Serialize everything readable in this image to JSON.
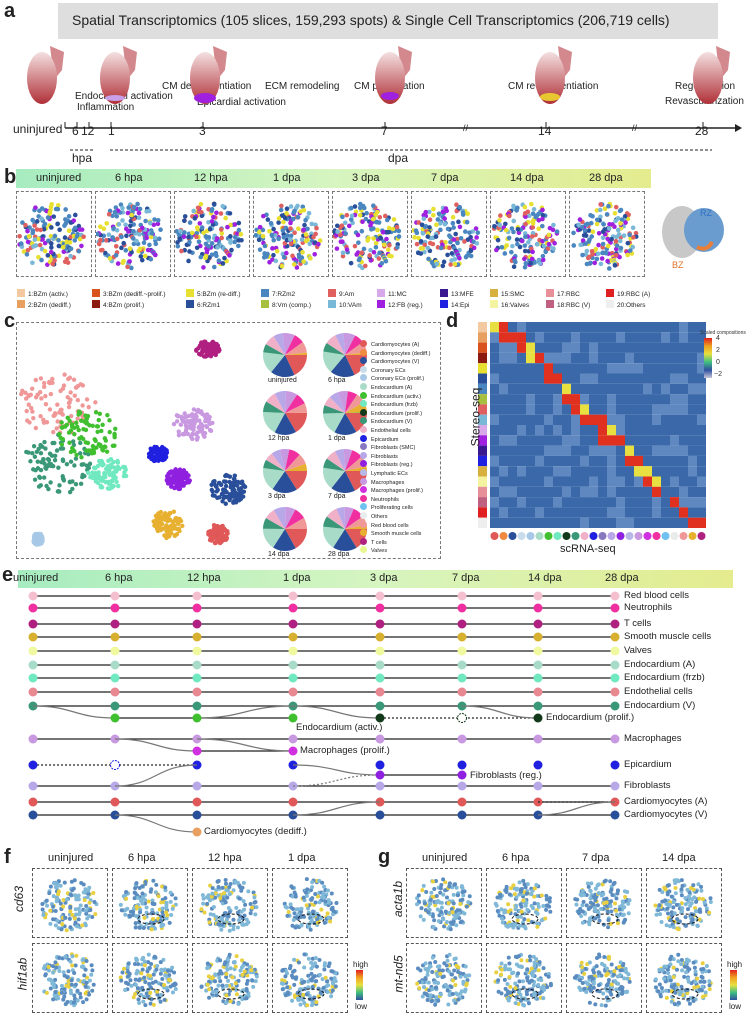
{
  "panel_labels": {
    "a": "a",
    "b": "b",
    "c": "c",
    "d": "d",
    "e": "e",
    "f": "f",
    "g": "g"
  },
  "a": {
    "header": "Spatial Transcriptomics  (105 slices, 159,293 spots)  &  Single Cell Transcriptomics (206,719 cells)",
    "events": [
      "Endocardial activation",
      "Inflammation",
      "CM dedifferentiation",
      "Epicardial activation",
      "ECM remodeling",
      "CM proliferation",
      "CM re-differentiation",
      "Regeneration",
      "Revascularization"
    ],
    "ticks": [
      "uninjured",
      "6",
      "12",
      "1",
      "3",
      "7",
      "14",
      "28"
    ],
    "units": [
      "hpa",
      "dpa"
    ]
  },
  "b": {
    "timepoints": [
      "uninjured",
      "6 hpa",
      "12 hpa",
      "1 dpa",
      "3 dpa",
      "7 dpa",
      "14 dpa",
      "28 dpa"
    ],
    "zones": [
      "RZ",
      "BZ"
    ],
    "legend": [
      {
        "label": "1:BZm (activ.)",
        "color": "#f2c9a0"
      },
      {
        "label": "2:BZm (dediff.)",
        "color": "#e8a060"
      },
      {
        "label": "3:BZm (dediff.~prolif.)",
        "color": "#d9531e"
      },
      {
        "label": "4:BZm (prolif.)",
        "color": "#8b1a10"
      },
      {
        "label": "5:BZm (re-diff.)",
        "color": "#e8e030"
      },
      {
        "label": "6:RZm1",
        "color": "#2a4f9a"
      },
      {
        "label": "7:RZm2",
        "color": "#4a86c0"
      },
      {
        "label": "8:Vm (comp.)",
        "color": "#a8c040"
      },
      {
        "label": "9:Am",
        "color": "#e06060"
      },
      {
        "label": "10:VAm",
        "color": "#7ab8d8"
      },
      {
        "label": "11:MC",
        "color": "#d8a8e8"
      },
      {
        "label": "12:FB (reg.)",
        "color": "#a020e0"
      },
      {
        "label": "13:MFE",
        "color": "#3a1890"
      },
      {
        "label": "14:Epi",
        "color": "#2020e0"
      },
      {
        "label": "15:SMC",
        "color": "#d8b040"
      },
      {
        "label": "16:Valves",
        "color": "#f4f4a0"
      },
      {
        "label": "17:RBC",
        "color": "#e8909a"
      },
      {
        "label": "18:RBC (V)",
        "color": "#c06080"
      },
      {
        "label": "19:RBC (A)",
        "color": "#e02020"
      },
      {
        "label": "20:Others",
        "color": "#eeeeee"
      }
    ]
  },
  "c": {
    "pie_labels": [
      "uninjured",
      "6 hpa",
      "12 hpa",
      "1 dpa",
      "3 dpa",
      "7 dpa",
      "14 dpa",
      "28 dpa"
    ],
    "legend": [
      {
        "label": "Cardiomyocytes (A)",
        "color": "#e05858"
      },
      {
        "label": "Cardiomyocytes (dediff.)",
        "color": "#f08a40"
      },
      {
        "label": "Cardiomyocytes (V)",
        "color": "#2a4f9a"
      },
      {
        "label": "Coronary ECs",
        "color": "#c8dcec"
      },
      {
        "label": "Coronary ECs (prolif.)",
        "color": "#a8c8e8"
      },
      {
        "label": "Endocardium (A)",
        "color": "#a8dcc8"
      },
      {
        "label": "Endocardium (activ.)",
        "color": "#40c030"
      },
      {
        "label": "Endocardium (frzb)",
        "color": "#70e8c0"
      },
      {
        "label": "Endocardium (prolif.)",
        "color": "#123a1a"
      },
      {
        "label": "Endocardium (V)",
        "color": "#3a9878"
      },
      {
        "label": "Endothelial cells",
        "color": "#f0b0c8"
      },
      {
        "label": "Epicardium",
        "color": "#2020e0"
      },
      {
        "label": "Fibroblasts (SMC)",
        "color": "#8878c0"
      },
      {
        "label": "Fibroblasts",
        "color": "#b8a8e8"
      },
      {
        "label": "Fibroblasts (reg.)",
        "color": "#9020e0"
      },
      {
        "label": "Lymphatic ECs",
        "color": "#b8b8e8"
      },
      {
        "label": "Macrophages",
        "color": "#c898e0"
      },
      {
        "label": "Macrophages (prolif.)",
        "color": "#d030e0"
      },
      {
        "label": "Neutrophils",
        "color": "#f030a0"
      },
      {
        "label": "Proliferating cells",
        "color": "#70c0f0"
      },
      {
        "label": "Others",
        "color": "#e8ecec"
      },
      {
        "label": "Red blood cells",
        "color": "#f09898"
      },
      {
        "label": "Smooth muscle cells",
        "color": "#e8b030"
      },
      {
        "label": "T cells",
        "color": "#b02080"
      },
      {
        "label": "Valves",
        "color": "#e8f890"
      }
    ]
  },
  "d": {
    "ylabel": "Stereo-seq",
    "xlabel": "scRNA-seq",
    "colorbar_title": "Scaled compositions",
    "colorbar_ticks": [
      "4",
      "2",
      "0",
      "−2"
    ]
  },
  "e": {
    "timepoints": [
      "uninjured",
      "6 hpa",
      "12 hpa",
      "1 dpa",
      "3 dpa",
      "7 dpa",
      "14 dpa",
      "28 dpa"
    ],
    "rows": [
      {
        "label": "Red blood cells",
        "color": "#f4c0d0"
      },
      {
        "label": "Neutrophils",
        "color": "#f030a0"
      },
      {
        "label": "T cells",
        "color": "#b02080"
      },
      {
        "label": "Smooth muscle cells",
        "color": "#d8b030"
      },
      {
        "label": "Valves",
        "color": "#f0f8a0"
      },
      {
        "label": "Endocardium (A)",
        "color": "#a8dcc8"
      },
      {
        "label": "Endocardium (frzb)",
        "color": "#70e8c0"
      },
      {
        "label": "Endothelial cells",
        "color": "#e88890"
      },
      {
        "label": "Endocardium (V)",
        "color": "#3a9878"
      },
      {
        "label": "Macrophages",
        "color": "#c898e0"
      },
      {
        "label": "Epicardium",
        "color": "#2020e0"
      },
      {
        "label": "Fibroblasts",
        "color": "#b8a8e8"
      },
      {
        "label": "Cardiomyocytes (A)",
        "color": "#e05858"
      },
      {
        "label": "Cardiomyocytes (V)",
        "color": "#2a4f9a"
      }
    ],
    "branches": [
      {
        "label": "Endocardium (activ.)",
        "color": "#40c030"
      },
      {
        "label": "Endocardium (prolif.)",
        "color": "#123a1a"
      },
      {
        "label": "Macrophages (prolif.)",
        "color": "#d030e0"
      },
      {
        "label": "Fibroblasts (reg.)",
        "color": "#9020e0"
      },
      {
        "label": "Cardiomyocytes  (dediff.)",
        "color": "#e8a060"
      }
    ]
  },
  "f": {
    "timepoints": [
      "uninjured",
      "6 hpa",
      "12 hpa",
      "1 dpa"
    ],
    "genes": [
      "cd63",
      "hif1ab"
    ],
    "scale": [
      "high",
      "low"
    ]
  },
  "g": {
    "timepoints": [
      "uninjured",
      "6 hpa",
      "7 dpa",
      "14 dpa"
    ],
    "genes": [
      "acta1b",
      "mt-nd5"
    ],
    "scale": [
      "high",
      "low"
    ]
  }
}
